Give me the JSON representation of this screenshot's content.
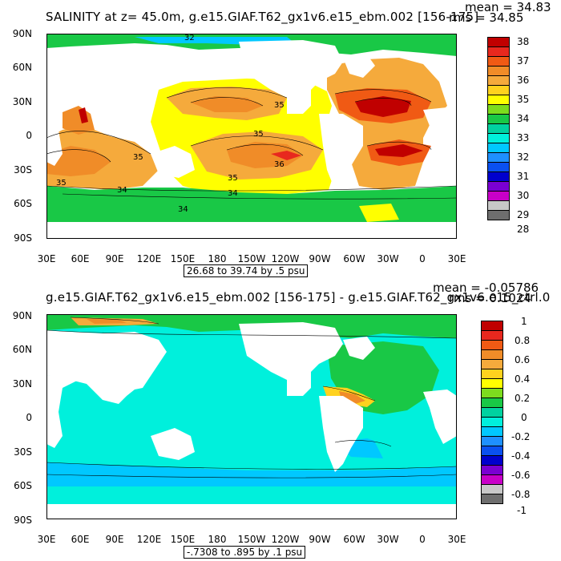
{
  "panels": [
    {
      "title": "SALINITY at z=  45.0m, g.e15.GIAF.T62_gx1v6.e15_ebm.002 [156-175]",
      "mean": "mean = 34.83",
      "rms": "rms = 34.85",
      "range": "26.68 to 39.74 by .5 psu",
      "lat_labels": [
        "90N",
        "60N",
        "30N",
        "0",
        "30S",
        "60S",
        "90S"
      ],
      "lon_labels": [
        "30E",
        "60E",
        "90E",
        "120E",
        "150E",
        "180",
        "150W",
        "120W",
        "90W",
        "60W",
        "30W",
        "0",
        "30E"
      ],
      "colorbar_labels": [
        "38",
        "37",
        "36",
        "35",
        "34",
        "33",
        "32",
        "31",
        "30",
        "29",
        "28"
      ],
      "colorbar_colors": [
        "#c00000",
        "#e8281e",
        "#f05a14",
        "#f08c28",
        "#f5aa3c",
        "#ffd21e",
        "#ffff00",
        "#7ddc1e",
        "#19c846",
        "#00d2a0",
        "#00f0dc",
        "#00c8ff",
        "#1e90ff",
        "#0a50f0",
        "#0000cd",
        "#7a00d2",
        "#c800c8",
        "#c8c8c8",
        "#6e6e6e"
      ],
      "contour_labels": [
        "32",
        "35",
        "35",
        "35",
        "36",
        "35",
        "35",
        "34",
        "34",
        "34"
      ]
    },
    {
      "title": "g.e15.GIAF.T62_gx1v6.e15_ebm.002 [156-175] - g.e15.GIAF.T62_gx1v6.e15_ctrl.0",
      "mean": "mean = -0.05786",
      "rms": "rms = 0.1024",
      "range": "-.7308 to .895 by .1 psu",
      "lat_labels": [
        "90N",
        "60N",
        "30N",
        "0",
        "30S",
        "60S",
        "90S"
      ],
      "lon_labels": [
        "30E",
        "60E",
        "90E",
        "120E",
        "150E",
        "180",
        "150W",
        "120W",
        "90W",
        "60W",
        "30W",
        "0",
        "30E"
      ],
      "colorbar_labels": [
        "1",
        "0.8",
        "0.6",
        "0.4",
        "0.2",
        "0",
        "-0.2",
        "-0.4",
        "-0.6",
        "-0.8",
        "-1"
      ],
      "colorbar_colors": [
        "#c00000",
        "#e8281e",
        "#f05a14",
        "#f08c28",
        "#f5aa3c",
        "#ffd21e",
        "#ffff00",
        "#7ddc1e",
        "#19c846",
        "#00d2a0",
        "#00f0dc",
        "#00c8ff",
        "#1e90ff",
        "#0a50f0",
        "#0000cd",
        "#7a00d2",
        "#c800c8",
        "#c8c8c8",
        "#6e6e6e"
      ]
    }
  ]
}
